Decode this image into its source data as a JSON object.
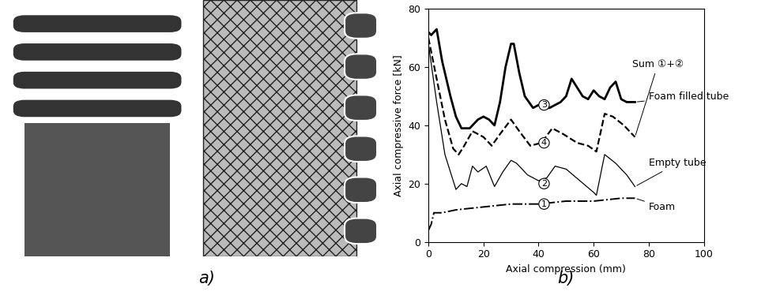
{
  "chart_data": {
    "type": "line",
    "x_label": "Axial compression (mm)",
    "y_label": "Axial compressive force [kN]",
    "xlim": [
      0,
      100
    ],
    "xticks": [
      0,
      20,
      40,
      60,
      80,
      100
    ],
    "ylim": [
      0,
      80
    ],
    "yticks": [
      0,
      20,
      40,
      60,
      80
    ],
    "grid": false,
    "series": [
      {
        "name": "Foam filled tube",
        "color": "#000000",
        "line_style": "solid",
        "x": [
          0,
          1,
          2,
          3,
          5,
          8,
          10,
          12,
          15,
          18,
          20,
          22,
          24,
          26,
          28,
          30,
          31,
          33,
          35,
          38,
          40,
          42,
          44,
          46,
          48,
          50,
          52,
          54,
          56,
          58,
          60,
          62,
          64,
          66,
          68,
          70,
          72,
          75
        ],
        "values": [
          72,
          71,
          72,
          73,
          62,
          50,
          43,
          39,
          39,
          42,
          43,
          42,
          40,
          48,
          60,
          68,
          68,
          58,
          50,
          46,
          47,
          46,
          46,
          47,
          48,
          50,
          56,
          53,
          50,
          49,
          52,
          50,
          49,
          53,
          55,
          49,
          48,
          48
        ]
      },
      {
        "name": "Sum ①+②",
        "color": "#000000",
        "line_style": "dashed",
        "x": [
          0,
          3,
          6,
          9,
          11,
          13,
          16,
          20,
          23,
          26,
          30,
          33,
          37,
          41,
          45,
          49,
          54,
          58,
          61,
          64,
          67,
          71,
          75
        ],
        "values": [
          70,
          56,
          42,
          32,
          30,
          33,
          38,
          36,
          33,
          37,
          42,
          38,
          33,
          34,
          39,
          37,
          34,
          33,
          31,
          44,
          43,
          40,
          36
        ]
      },
      {
        "name": "Empty tube",
        "color": "#000000",
        "line_style": "thin",
        "x": [
          0,
          3,
          6,
          9,
          10,
          12,
          14,
          16,
          18,
          21,
          24,
          27,
          30,
          32,
          36,
          40,
          43,
          46,
          50,
          55,
          60,
          61,
          64,
          68,
          72,
          75
        ],
        "values": [
          68,
          48,
          30,
          21,
          18,
          20,
          19,
          26,
          24,
          26,
          19,
          24,
          28,
          27,
          23,
          21,
          22,
          26,
          25,
          21,
          17,
          16,
          30,
          27,
          23,
          19
        ]
      },
      {
        "name": "Foam",
        "color": "#000000",
        "line_style": "dashdot",
        "x": [
          0,
          1,
          2,
          5,
          10,
          20,
          30,
          40,
          50,
          60,
          70,
          75
        ],
        "values": [
          4,
          6,
          10,
          10,
          11,
          12,
          13,
          13,
          14,
          14,
          15,
          15
        ]
      }
    ],
    "annotations": [
      {
        "text": "3",
        "x": 42,
        "y": 47
      },
      {
        "text": "4",
        "x": 42,
        "y": 34
      },
      {
        "text": "2",
        "x": 42,
        "y": 20
      },
      {
        "text": "1",
        "x": 42,
        "y": 13
      }
    ]
  },
  "captions": [
    "a)",
    "b)"
  ]
}
